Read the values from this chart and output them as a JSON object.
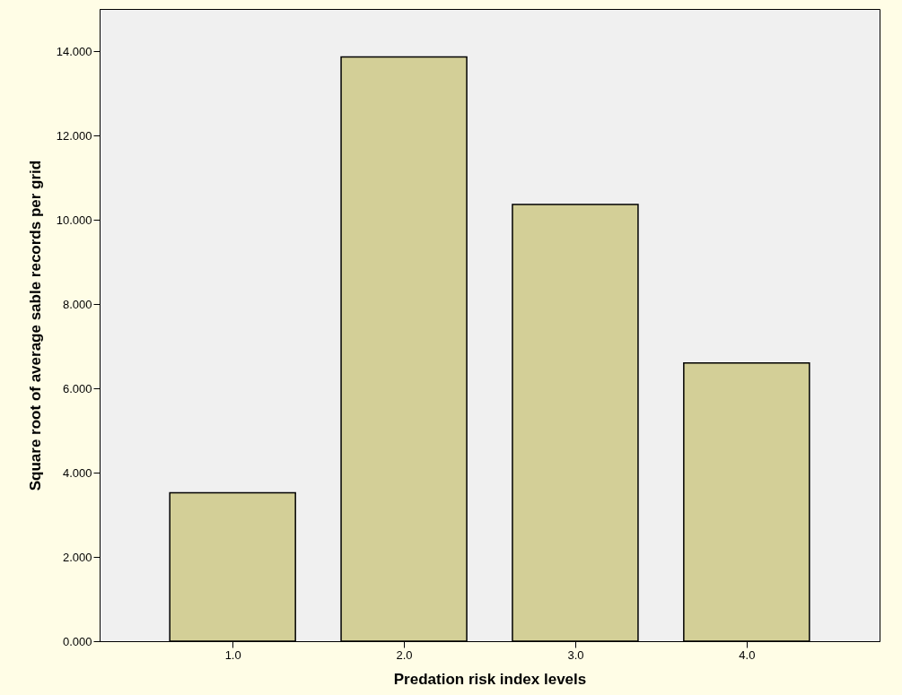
{
  "chart_data": {
    "type": "bar",
    "xlabel": "Predation risk index levels",
    "ylabel": "Square root of average sable records per grid",
    "categories": [
      "1.0",
      "2.0",
      "3.0",
      "4.0"
    ],
    "values": [
      3.52,
      13.86,
      10.36,
      6.6
    ],
    "color": "#d3cf97",
    "ylim": [
      0,
      15.0
    ],
    "yticks": [
      {
        "value": 0,
        "label": "0.000"
      },
      {
        "value": 2,
        "label": "2.000"
      },
      {
        "value": 4,
        "label": "4.000"
      },
      {
        "value": 6,
        "label": "6.000"
      },
      {
        "value": 8,
        "label": "8.000"
      },
      {
        "value": 10,
        "label": "10.000"
      },
      {
        "value": 12,
        "label": "12.000"
      },
      {
        "value": 14,
        "label": "14.000"
      }
    ],
    "grid": false
  }
}
